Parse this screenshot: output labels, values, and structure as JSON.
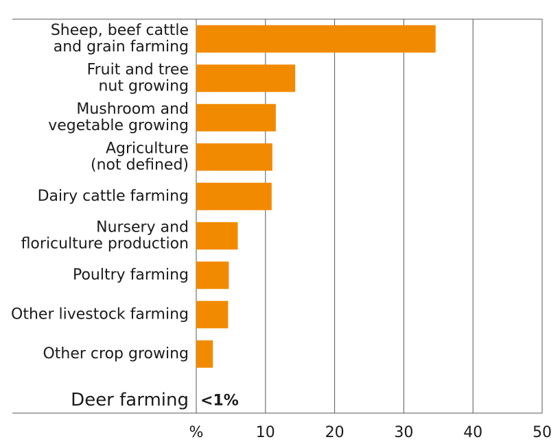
{
  "chart_data": {
    "type": "barh",
    "categories": [
      [
        "Sheep, beef cattle",
        "and grain farming"
      ],
      [
        "Fruit and tree",
        "nut growing"
      ],
      [
        "Mushroom and",
        "vegetable growing"
      ],
      [
        "Agriculture",
        "(not defined)"
      ],
      [
        "Dairy cattle farming"
      ],
      [
        "Nursery and",
        "floriculture production"
      ],
      [
        "Poultry farming"
      ],
      [
        "Other livestock farming"
      ],
      [
        "Other crop growing"
      ],
      [
        "Deer farming"
      ]
    ],
    "values": [
      34.6,
      14.3,
      11.5,
      11.0,
      10.9,
      6.0,
      4.7,
      4.6,
      2.4,
      null
    ],
    "annotation": "<1%",
    "color": "#f28a00",
    "xlim": [
      0,
      50
    ],
    "xticks": [
      {
        "value": 0,
        "label": "%"
      },
      10,
      20,
      30,
      40,
      50
    ],
    "grid": true
  }
}
